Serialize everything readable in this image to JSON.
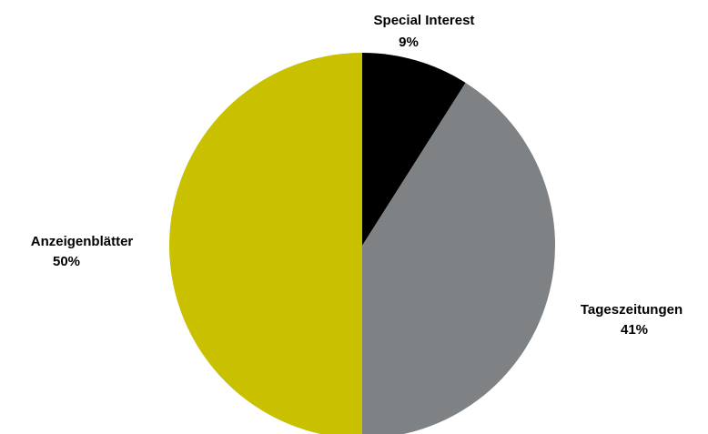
{
  "chart_data": {
    "type": "pie",
    "start_angle_deg": 0,
    "direction": "clockwise",
    "slices": [
      {
        "label": "Special Interest",
        "value": 9,
        "value_label": "9%",
        "color": "#000000"
      },
      {
        "label": "Tageszeitungen",
        "value": 41,
        "value_label": "41%",
        "color": "#7f8285"
      },
      {
        "label": "Anzeigenblätter",
        "value": 50,
        "value_label": "50%",
        "color": "#c9c000"
      }
    ],
    "legend": "none",
    "labels_position": "outside"
  }
}
